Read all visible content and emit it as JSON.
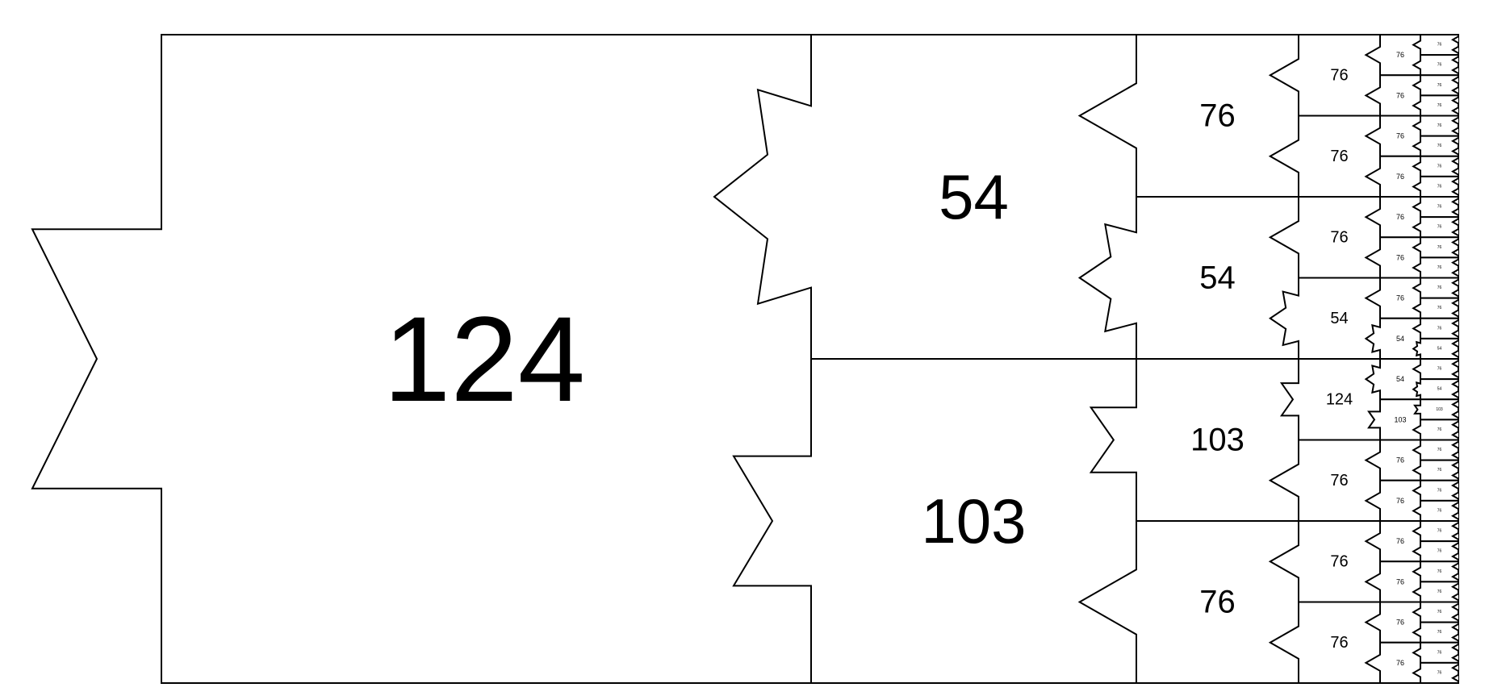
{
  "tile": {
    "label": "124",
    "children": [
      {
        "label": "54",
        "children": [
          {
            "label": "76",
            "children": [
              {
                "label": "76",
                "children": [
                  {
                    "label": "76",
                    "children": [
                      {
                        "label": "76"
                      },
                      {
                        "label": "76"
                      }
                    ]
                  },
                  {
                    "label": "76",
                    "children": [
                      {
                        "label": "76"
                      },
                      {
                        "label": "76"
                      }
                    ]
                  }
                ]
              },
              {
                "label": "76",
                "children": [
                  {
                    "label": "76",
                    "children": [
                      {
                        "label": "76"
                      },
                      {
                        "label": "76"
                      }
                    ]
                  },
                  {
                    "label": "76",
                    "children": [
                      {
                        "label": "76"
                      },
                      {
                        "label": "76"
                      }
                    ]
                  }
                ]
              }
            ]
          },
          {
            "label": "54",
            "children": [
              {
                "label": "76",
                "children": [
                  {
                    "label": "76",
                    "children": [
                      {
                        "label": "76"
                      },
                      {
                        "label": "76"
                      }
                    ]
                  },
                  {
                    "label": "76",
                    "children": [
                      {
                        "label": "76"
                      },
                      {
                        "label": "76"
                      }
                    ]
                  }
                ]
              },
              {
                "label": "54",
                "children": [
                  {
                    "label": "76",
                    "children": [
                      {
                        "label": "76"
                      },
                      {
                        "label": "76"
                      }
                    ]
                  },
                  {
                    "label": "54",
                    "children": [
                      {
                        "label": "76"
                      },
                      {
                        "label": "54"
                      }
                    ]
                  }
                ]
              }
            ]
          }
        ]
      },
      {
        "label": "103",
        "children": [
          {
            "label": "103",
            "children": [
              {
                "label": "124",
                "children": [
                  {
                    "label": "54",
                    "children": [
                      {
                        "label": "76"
                      },
                      {
                        "label": "54"
                      }
                    ]
                  },
                  {
                    "label": "103",
                    "children": [
                      {
                        "label": "103"
                      },
                      {
                        "label": "76"
                      }
                    ]
                  }
                ]
              },
              {
                "label": "76",
                "children": [
                  {
                    "label": "76",
                    "children": [
                      {
                        "label": "76"
                      },
                      {
                        "label": "76"
                      }
                    ]
                  },
                  {
                    "label": "76",
                    "children": [
                      {
                        "label": "76"
                      },
                      {
                        "label": "76"
                      }
                    ]
                  }
                ]
              }
            ]
          },
          {
            "label": "76",
            "children": [
              {
                "label": "76",
                "children": [
                  {
                    "label": "76",
                    "children": [
                      {
                        "label": "76"
                      },
                      {
                        "label": "76"
                      }
                    ]
                  },
                  {
                    "label": "76",
                    "children": [
                      {
                        "label": "76"
                      },
                      {
                        "label": "76"
                      }
                    ]
                  }
                ]
              },
              {
                "label": "76",
                "children": [
                  {
                    "label": "76",
                    "children": [
                      {
                        "label": "76"
                      },
                      {
                        "label": "76"
                      }
                    ]
                  },
                  {
                    "label": "76",
                    "children": [
                      {
                        "label": "76"
                      },
                      {
                        "label": "76"
                      }
                    ]
                  }
                ]
              }
            ]
          }
        ]
      }
    ]
  },
  "colors": {
    "stroke": "#000000",
    "fill": "#ffffff",
    "background": "#ffffff"
  }
}
